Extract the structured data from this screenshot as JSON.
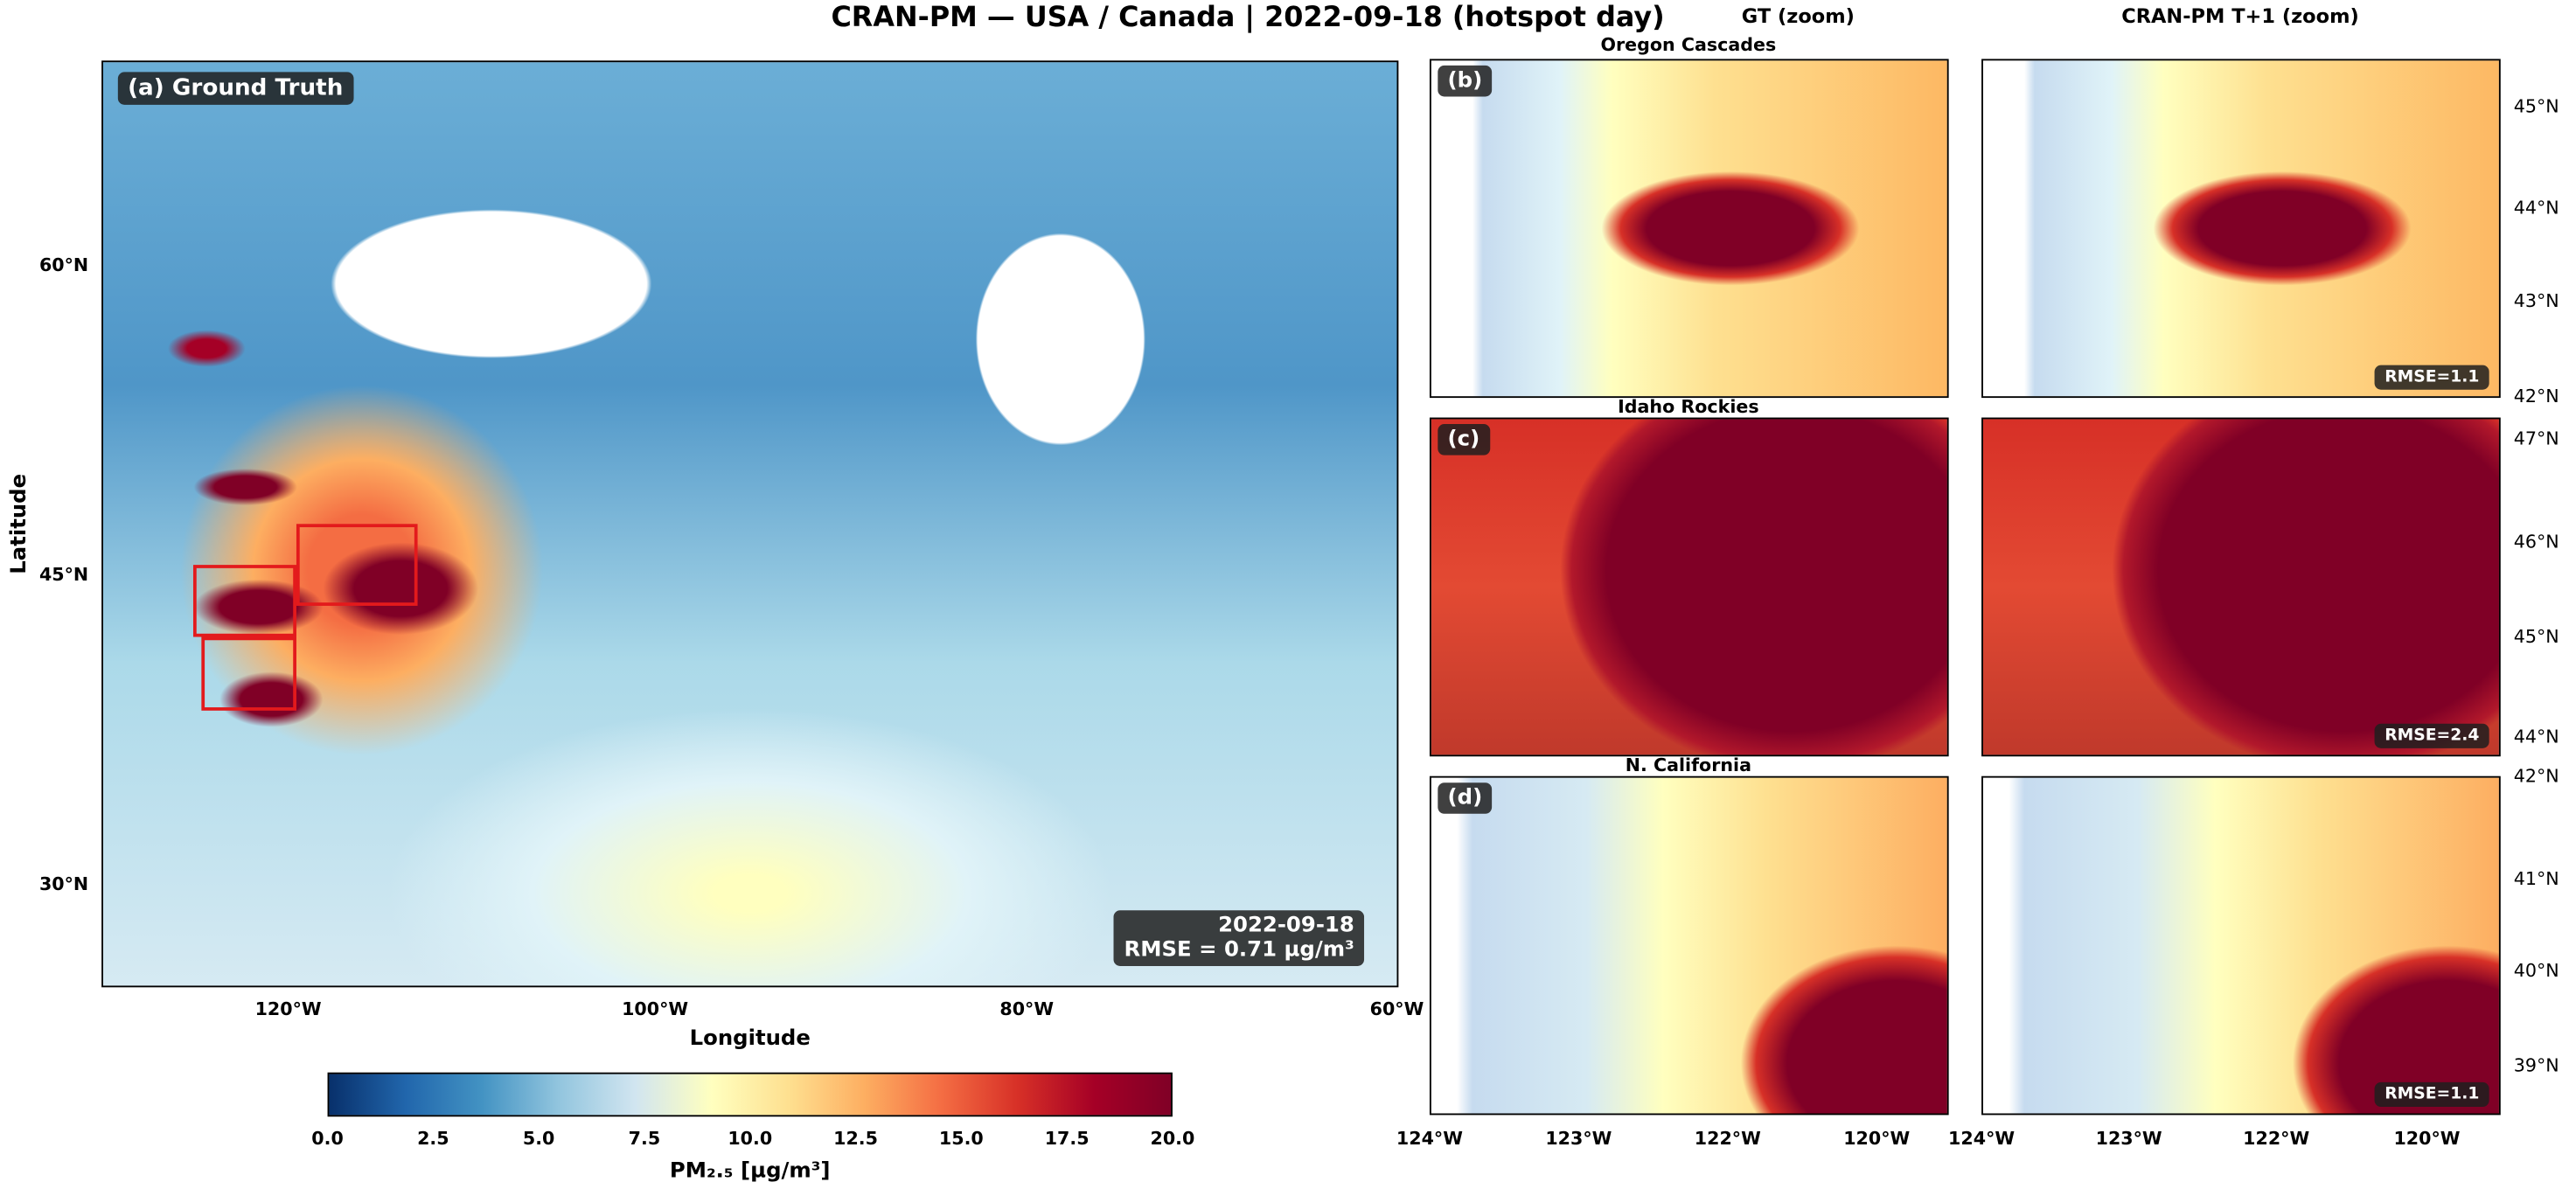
{
  "title": "CRAN-PM — USA / Canada  |  2022-09-18  (hotspot day)",
  "main_panel": {
    "label": "(a) Ground Truth",
    "date": "2022-09-18",
    "rmse": "RMSE = 0.71 µg/m³",
    "xlabel": "Longitude",
    "ylabel": "Latitude",
    "x_ticks": [
      "120°W",
      "100°W",
      "80°W",
      "60°W"
    ],
    "y_ticks": [
      "60°N",
      "45°N",
      "30°N"
    ]
  },
  "column_headers": [
    "GT (zoom)",
    "CRAN-PM T+1 (zoom)"
  ],
  "zoom_rows": [
    {
      "label": "(b)",
      "region": "Oregon Cascades",
      "rmse": "RMSE=1.1",
      "y_ticks": [
        "45°N",
        "44°N",
        "43°N",
        "42°N"
      ]
    },
    {
      "label": "(c)",
      "region": "Idaho Rockies",
      "rmse": "RMSE=2.4",
      "y_ticks": [
        "47°N",
        "46°N",
        "45°N",
        "44°N"
      ]
    },
    {
      "label": "(d)",
      "region": "N. California",
      "rmse": "RMSE=1.1",
      "y_ticks": [
        "42°N",
        "41°N",
        "40°N",
        "39°N"
      ]
    }
  ],
  "zoom_x_ticks": [
    "124°W",
    "123°W",
    "122°W",
    "120°W"
  ],
  "colorbar": {
    "label": "PM₂.₅ [µg/m³]",
    "ticks": [
      "0.0",
      "2.5",
      "5.0",
      "7.5",
      "10.0",
      "12.5",
      "15.0",
      "17.5",
      "20.0"
    ],
    "range": [
      0,
      20
    ],
    "colormap": "RdYlBu_r"
  },
  "chart_data": {
    "type": "heatmap",
    "title": "CRAN-PM — USA / Canada  |  2022-09-18  (hotspot day)",
    "xlabel": "Longitude",
    "ylabel": "Latitude",
    "color_range": [
      0,
      20
    ],
    "color_label": "PM₂.₅ [µg/m³]",
    "highlight_color": "#e31a1c"
  }
}
